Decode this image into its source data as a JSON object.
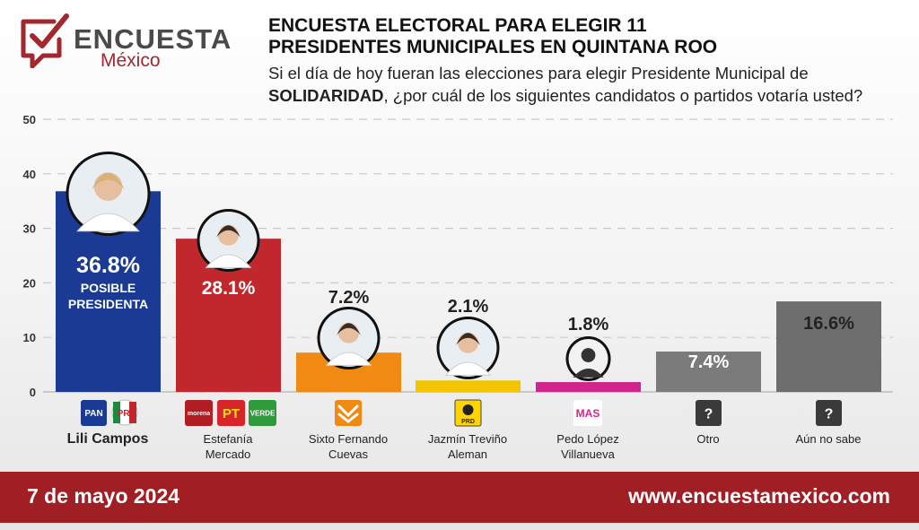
{
  "logo": {
    "word": "ENCUESTA",
    "sub": "México",
    "brand_color": "#a0282e"
  },
  "header": {
    "title_line1": "ENCUESTA ELECTORAL PARA ELEGIR 11",
    "title_line2": "PRESIDENTES MUNICIPALES EN QUINTANA ROO",
    "question_line1": "Si el día de hoy fueran las elecciones para elegir Presidente Municipal de",
    "question_bold": "SOLIDARIDAD",
    "question_rest": ", ¿por cuál de los siguientes candidatos o partidos votaría usted?"
  },
  "chart_data": {
    "type": "bar",
    "ylim": [
      0,
      50
    ],
    "yticks": [
      0,
      10,
      20,
      30,
      40,
      50
    ],
    "grid": true,
    "categories": [
      "Lili Campos",
      "Estefanía Mercado",
      "Sixto Fernando Cuevas",
      "Jazmín Treviño Aleman",
      "Pedo López Villanueva",
      "Otro",
      "Aún no sabe"
    ],
    "values": [
      36.8,
      28.1,
      7.2,
      2.1,
      1.8,
      7.4,
      16.6
    ],
    "value_labels": [
      "36.8%",
      "28.1%",
      "7.2%",
      "2.1%",
      "1.8%",
      "7.4%",
      "16.6%"
    ],
    "bar_colors": [
      "#1a3a93",
      "#c0282d",
      "#f08a12",
      "#f2c500",
      "#d1258d",
      "#7b7b7b",
      "#6e6e6e"
    ],
    "leader_note": [
      "POSIBLE",
      "PRESIDENTA"
    ],
    "party_labels": {
      "pan": "PAN",
      "pri": "PRI",
      "morena": "morena",
      "pt": "PT",
      "verde": "VERDE",
      "prd": "PRD",
      "mas": "MAS",
      "unknown": "?"
    }
  },
  "footer": {
    "date": "7 de mayo 2024",
    "url": "www.encuestamexico.com"
  }
}
